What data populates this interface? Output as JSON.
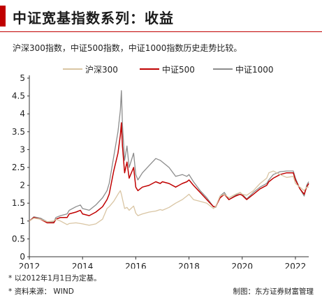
{
  "header": {
    "title": "中证宽基指数系列：收益",
    "subtitle": "沪深300指数，中证500指数，中证1000指数历史走势比较。"
  },
  "footer": {
    "note1": "* 以2012年1月1日为定基。",
    "note2": "* 资料来源： WIND",
    "credit": "制图：东方证券财富管理"
  },
  "colors": {
    "accent": "#c00000",
    "hs300": "#d9c5a3",
    "zz500": "#c00000",
    "zz1000": "#8c8c8c"
  },
  "chart_data": {
    "type": "line",
    "title": "",
    "xlabel": "",
    "ylabel": "",
    "xlim": [
      2012.0,
      2022.5
    ],
    "ylim": [
      0,
      5
    ],
    "x_ticks": [
      "2012",
      "2014",
      "2016",
      "2018",
      "2020",
      "2022"
    ],
    "y_ticks": [
      "0",
      "0.5",
      "1",
      "1.5",
      "2",
      "2.5",
      "3",
      "3.5",
      "4",
      "4.5",
      "5"
    ],
    "legend_position": "top",
    "x": [
      2012.0,
      2012.17,
      2012.42,
      2012.67,
      2012.92,
      2013.0,
      2013.17,
      2013.42,
      2013.5,
      2013.75,
      2013.92,
      2014.0,
      2014.25,
      2014.5,
      2014.75,
      2014.92,
      2015.0,
      2015.17,
      2015.33,
      2015.42,
      2015.46,
      2015.5,
      2015.58,
      2015.67,
      2015.75,
      2015.92,
      2016.0,
      2016.08,
      2016.25,
      2016.5,
      2016.75,
      2016.92,
      2017.0,
      2017.25,
      2017.5,
      2017.75,
      2017.92,
      2018.0,
      2018.17,
      2018.42,
      2018.67,
      2018.92,
      2019.0,
      2019.17,
      2019.33,
      2019.5,
      2019.75,
      2019.92,
      2020.0,
      2020.17,
      2020.42,
      2020.67,
      2020.92,
      2021.0,
      2021.17,
      2021.42,
      2021.67,
      2021.92,
      2022.0,
      2022.17,
      2022.33,
      2022.42,
      2022.5
    ],
    "series": [
      {
        "name": "沪深300",
        "values": [
          1.0,
          1.08,
          1.05,
          0.98,
          1.0,
          1.05,
          1.0,
          0.9,
          0.93,
          0.95,
          0.93,
          0.92,
          0.88,
          0.92,
          1.05,
          1.35,
          1.4,
          1.55,
          1.75,
          1.85,
          1.75,
          1.62,
          1.35,
          1.38,
          1.3,
          1.42,
          1.22,
          1.15,
          1.2,
          1.25,
          1.28,
          1.32,
          1.3,
          1.38,
          1.5,
          1.6,
          1.7,
          1.75,
          1.6,
          1.55,
          1.5,
          1.35,
          1.4,
          1.7,
          1.75,
          1.65,
          1.75,
          1.8,
          1.75,
          1.72,
          1.85,
          2.05,
          2.2,
          2.35,
          2.4,
          2.3,
          2.22,
          2.25,
          2.05,
          1.95,
          1.85,
          1.95,
          1.95
        ]
      },
      {
        "name": "中证500",
        "values": [
          1.0,
          1.1,
          1.05,
          0.95,
          0.95,
          1.05,
          1.1,
          1.1,
          1.2,
          1.25,
          1.3,
          1.2,
          1.15,
          1.25,
          1.4,
          1.6,
          1.75,
          2.4,
          2.9,
          3.4,
          3.75,
          3.1,
          2.35,
          2.65,
          2.2,
          2.5,
          1.95,
          1.85,
          1.95,
          2.0,
          2.1,
          2.05,
          2.1,
          2.05,
          1.95,
          2.05,
          2.1,
          2.15,
          2.0,
          1.8,
          1.6,
          1.4,
          1.4,
          1.65,
          1.75,
          1.6,
          1.7,
          1.75,
          1.72,
          1.6,
          1.75,
          1.9,
          2.0,
          2.1,
          2.2,
          2.3,
          2.35,
          2.35,
          2.15,
          1.9,
          1.75,
          1.95,
          2.05
        ]
      },
      {
        "name": "中证1000",
        "values": [
          1.0,
          1.12,
          1.08,
          0.98,
          0.98,
          1.1,
          1.15,
          1.2,
          1.3,
          1.4,
          1.45,
          1.35,
          1.3,
          1.45,
          1.65,
          1.85,
          2.05,
          2.8,
          3.5,
          4.1,
          4.65,
          3.7,
          2.7,
          3.1,
          2.5,
          2.9,
          2.3,
          2.15,
          2.35,
          2.55,
          2.75,
          2.7,
          2.65,
          2.5,
          2.25,
          2.3,
          2.25,
          2.3,
          2.1,
          1.85,
          1.65,
          1.4,
          1.38,
          1.7,
          1.8,
          1.6,
          1.72,
          1.8,
          1.75,
          1.62,
          1.8,
          1.95,
          2.05,
          2.15,
          2.3,
          2.38,
          2.4,
          2.4,
          2.2,
          1.9,
          1.7,
          2.0,
          2.1
        ]
      }
    ]
  }
}
